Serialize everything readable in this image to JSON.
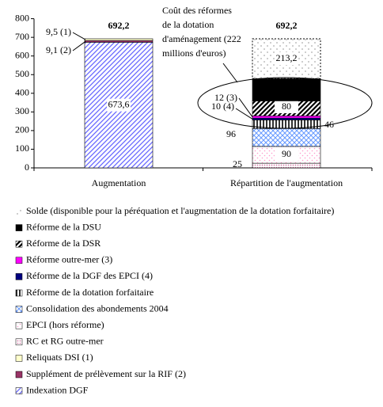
{
  "chart_data": {
    "type": "stacked_bar",
    "categories": [
      "Augmentation",
      "Répartition de l'augmentation"
    ],
    "ylim": [
      0,
      800
    ],
    "yticks": [
      0,
      100,
      200,
      300,
      400,
      500,
      600,
      700,
      800
    ],
    "grid": false,
    "totals": [
      692.2,
      692.2
    ],
    "total_labels": [
      "692,2",
      "692,2"
    ],
    "annotation_lines": [
      "Coût des réformes",
      "de la dotation",
      "d'aménagement (222",
      "millions d'euros)"
    ],
    "series": [
      {
        "name": "Solde (disponible pour la péréquation et l'augmentation de la dotation forfaitaire)",
        "color": "#000000",
        "pattern": "sparse-dots",
        "values": [
          null,
          213.2
        ],
        "value_labels": [
          null,
          "213,2"
        ]
      },
      {
        "name": "Réforme de la DSU",
        "color": "#000000",
        "pattern": "solid",
        "values": [
          null,
          120
        ],
        "value_labels": [
          null,
          null
        ]
      },
      {
        "name": "Réforme de la DSR",
        "color": "#000000",
        "pattern": "thick-diagonal",
        "values": [
          null,
          80
        ],
        "value_labels": [
          null,
          "80"
        ]
      },
      {
        "name": "Réforme outre-mer (3)",
        "color": "#ff00ff",
        "pattern": "solid",
        "values": [
          null,
          12
        ],
        "value_labels": [
          null,
          "12 (3)"
        ]
      },
      {
        "name": "Réforme de la DGF des EPCI (4)",
        "color": "#000080",
        "pattern": "solid",
        "values": [
          null,
          10
        ],
        "value_labels": [
          null,
          "10 (4)"
        ]
      },
      {
        "name": "Réforme de la dotation forfaitaire",
        "color": "#000000",
        "pattern": "vertical",
        "values": [
          null,
          46
        ],
        "value_labels": [
          null,
          "46"
        ]
      },
      {
        "name": "Consolidation des abondements 2004",
        "color": "#6699ff",
        "pattern": "cross",
        "values": [
          null,
          96
        ],
        "value_labels": [
          null,
          "96"
        ]
      },
      {
        "name": "EPCI (hors réforme)",
        "color": "#ff99cc",
        "pattern": "dots",
        "values": [
          null,
          90
        ],
        "value_labels": [
          null,
          "90"
        ]
      },
      {
        "name": "RC et RG outre-mer",
        "color": "#cc6699",
        "pattern": "dense-dots",
        "values": [
          null,
          25
        ],
        "value_labels": [
          null,
          "25"
        ]
      },
      {
        "name": "Reliquats DSI (1)",
        "color": "#ffffcc",
        "pattern": "solid",
        "values": [
          9.5,
          null
        ],
        "value_labels": [
          "9,5 (1)",
          null
        ]
      },
      {
        "name": "Supplément de prélèvement sur la RIF (2)",
        "color": "#993366",
        "pattern": "solid",
        "values": [
          9.1,
          null
        ],
        "value_labels": [
          "9,1 (2)",
          null
        ]
      },
      {
        "name": "Indexation DGF",
        "color": "#6666ff",
        "pattern": "diagonal",
        "values": [
          673.6,
          null
        ],
        "value_labels": [
          "673,6",
          null
        ]
      }
    ]
  }
}
